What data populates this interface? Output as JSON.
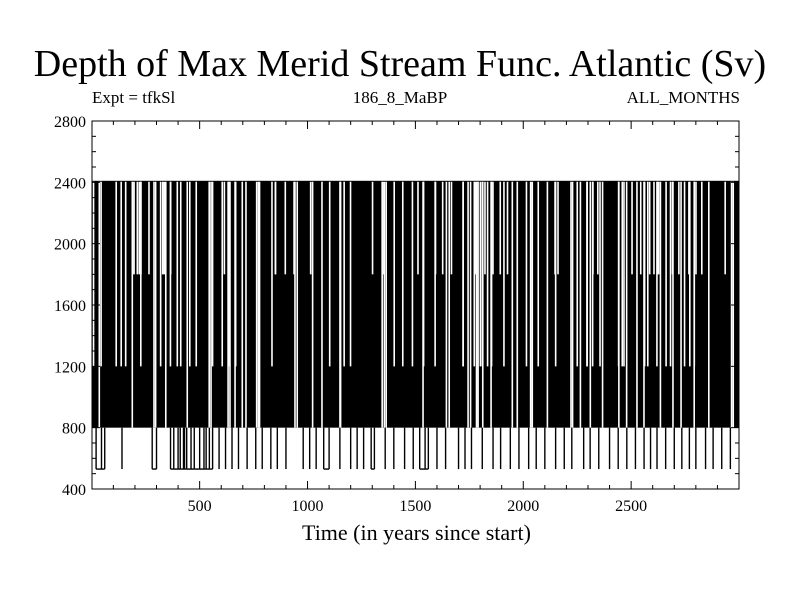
{
  "title": "Depth of Max Merid Stream Func. Atlantic (Sv)",
  "subtitle_left": "Expt = tfkSl",
  "subtitle_center": "186_8_MaBP",
  "subtitle_right": "ALL_MONTHS",
  "chart_data": {
    "type": "line",
    "title": "Depth of Max Merid Stream Func. Atlantic (Sv)",
    "xlabel": "Time (in years since start)",
    "ylabel": "",
    "xlim": [
      1,
      3000
    ],
    "ylim": [
      400,
      2800
    ],
    "xticks": [
      500,
      1000,
      1500,
      2000,
      2500
    ],
    "yticks": [
      400,
      800,
      1200,
      1600,
      2000,
      2400,
      2800
    ],
    "grid": false,
    "series": [
      {
        "name": "Depth of Max Merid Stream Func.",
        "levels": [
          530,
          800,
          1200,
          1800,
          2410
        ],
        "description": "Annual values oscillating between discrete depth levels: dense band between 800 and 2410, frequent dips to ~530.",
        "min_level": 530,
        "max_level": 2410,
        "dips_to_530_years": [
          20,
          45,
          60,
          140,
          280,
          300,
          365,
          380,
          400,
          410,
          425,
          430,
          440,
          460,
          475,
          500,
          520,
          530,
          545,
          560,
          590,
          620,
          650,
          680,
          720,
          760,
          790,
          830,
          860,
          900,
          980,
          1010,
          1040,
          1075,
          1100,
          1150,
          1200,
          1230,
          1260,
          1295,
          1310,
          1360,
          1400,
          1450,
          1490,
          1520,
          1545,
          1560,
          1600,
          1640,
          1700,
          1730,
          1760,
          1810,
          1860,
          1895,
          1940,
          1980,
          2025,
          2060,
          2100,
          2150,
          2190,
          2225,
          2280,
          2310,
          2350,
          2400,
          2440,
          2480,
          2520,
          2560,
          2590,
          2620,
          2660,
          2700,
          2735,
          2770,
          2800,
          2845,
          2880,
          2920,
          2960
        ]
      }
    ]
  }
}
